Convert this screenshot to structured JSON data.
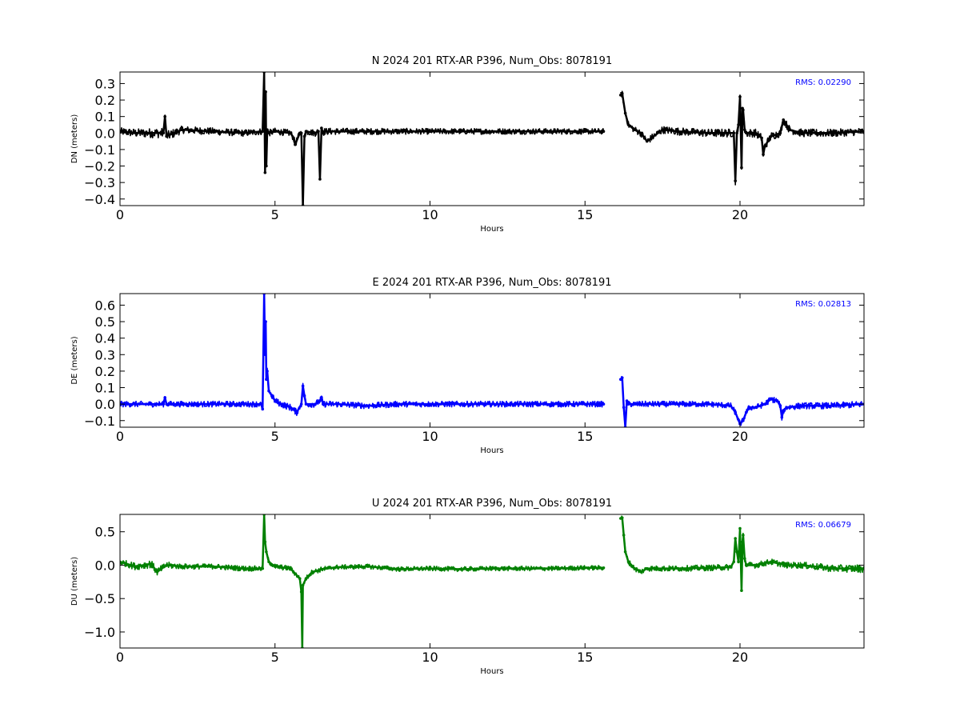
{
  "chart_data": [
    {
      "type": "line",
      "title": "N 2024 201 RTX-AR  P396, Num_Obs: 8078191",
      "xlabel": "Hours",
      "ylabel": "DN (meters)",
      "xlim": [
        0,
        24
      ],
      "ylim": [
        -0.44,
        0.37
      ],
      "xticks": [
        0,
        5,
        10,
        15,
        20
      ],
      "yticks": [
        0.3,
        0.2,
        0.1,
        0.0,
        -0.1,
        -0.2,
        -0.3,
        -0.4
      ],
      "xtick_labels": [
        "0",
        "5",
        "10",
        "15",
        "20"
      ],
      "ytick_labels": [
        "0.3",
        "0.2",
        "0.1",
        "0.0",
        "−0.1",
        "−0.2",
        "−0.3",
        "−0.4"
      ],
      "color": "#000000",
      "annotation": "RMS:  0.02290",
      "band": [
        [
          0,
          0.045
        ],
        [
          1.2,
          0.06
        ],
        [
          1.5,
          0.06
        ],
        [
          2,
          0.045
        ],
        [
          4.6,
          0.04
        ],
        [
          5.6,
          0.04
        ],
        [
          6.5,
          0.04
        ],
        [
          10,
          0.035
        ],
        [
          15.6,
          0.035
        ],
        [
          16.2,
          0.04
        ],
        [
          19.5,
          0.05
        ],
        [
          24,
          0.045
        ]
      ],
      "x": [
        0,
        0.5,
        1.0,
        1.4,
        1.45,
        1.5,
        2.0,
        3.0,
        4.0,
        4.6,
        4.65,
        4.68,
        4.7,
        4.72,
        4.75,
        4.8,
        5.0,
        5.5,
        5.6,
        5.65,
        5.8,
        5.85,
        5.9,
        5.95,
        6.0,
        6.3,
        6.4,
        6.45,
        6.5,
        6.55,
        6.6,
        7.0,
        8.0,
        9.0,
        10.0,
        11.0,
        12.0,
        13.0,
        14.0,
        15.0,
        15.6,
        null,
        16.15,
        16.2,
        16.3,
        16.4,
        16.6,
        16.8,
        17.0,
        17.5,
        18.0,
        19.0,
        19.5,
        19.8,
        19.85,
        19.9,
        19.95,
        20.0,
        20.05,
        20.08,
        20.1,
        20.15,
        20.2,
        20.5,
        20.7,
        20.75,
        20.8,
        21.0,
        21.3,
        21.4,
        21.6,
        22.0,
        23.0,
        24.0
      ],
      "y": [
        0.01,
        0.0,
        0.0,
        0.0,
        0.1,
        -0.02,
        0.02,
        0.01,
        0.0,
        0.01,
        0.37,
        -0.24,
        0.25,
        -0.2,
        0.02,
        0.0,
        0.01,
        0.0,
        -0.03,
        -0.07,
        0.0,
        0.0,
        -0.44,
        -0.02,
        0.01,
        0.0,
        0.01,
        -0.28,
        0.03,
        0.0,
        0.01,
        0.01,
        0.01,
        0.01,
        0.01,
        0.01,
        0.01,
        0.01,
        0.01,
        0.01,
        0.01,
        null,
        0.23,
        0.24,
        0.12,
        0.05,
        0.02,
        0.0,
        -0.05,
        0.02,
        0.01,
        0.0,
        0.0,
        0.0,
        -0.29,
        0.0,
        0.05,
        0.22,
        -0.21,
        0.15,
        0.14,
        0.02,
        0.0,
        0.0,
        -0.03,
        -0.13,
        -0.08,
        -0.02,
        0.0,
        0.08,
        0.02,
        0.0,
        0.0,
        0.01
      ]
    },
    {
      "type": "line",
      "title": "E 2024 201 RTX-AR  P396, Num_Obs: 8078191",
      "xlabel": "Hours",
      "ylabel": "DE (meters)",
      "xlim": [
        0,
        24
      ],
      "ylim": [
        -0.14,
        0.67
      ],
      "xticks": [
        0,
        5,
        10,
        15,
        20
      ],
      "yticks": [
        0.6,
        0.5,
        0.4,
        0.3,
        0.2,
        0.1,
        0.0,
        -0.1
      ],
      "xtick_labels": [
        "0",
        "5",
        "10",
        "15",
        "20"
      ],
      "ytick_labels": [
        "0.6",
        "0.5",
        "0.4",
        "0.3",
        "0.2",
        "0.1",
        "0.0",
        "−0.1"
      ],
      "color": "#0000ff",
      "annotation": "RMS:  0.02813",
      "band": [
        [
          0,
          0.035
        ],
        [
          4.5,
          0.035
        ],
        [
          5.0,
          0.04
        ],
        [
          10,
          0.035
        ],
        [
          15.6,
          0.035
        ],
        [
          16.2,
          0.035
        ],
        [
          19.5,
          0.035
        ],
        [
          24,
          0.04
        ]
      ],
      "x": [
        0,
        1.0,
        1.4,
        1.45,
        1.5,
        2.0,
        3.0,
        4.0,
        4.55,
        4.6,
        4.65,
        4.68,
        4.7,
        4.72,
        4.75,
        4.8,
        4.9,
        5.0,
        5.2,
        5.5,
        5.7,
        5.85,
        5.9,
        5.95,
        6.0,
        6.3,
        6.45,
        6.5,
        6.55,
        7.0,
        8.0,
        9.0,
        10.0,
        11.0,
        12.0,
        13.0,
        14.0,
        15.0,
        15.6,
        null,
        16.15,
        16.2,
        16.25,
        16.3,
        16.35,
        16.4,
        16.6,
        17.0,
        18.0,
        19.0,
        19.7,
        19.85,
        20.0,
        20.1,
        20.2,
        20.3,
        20.5,
        20.8,
        21.0,
        21.2,
        21.3,
        21.35,
        21.4,
        21.5,
        22.0,
        23.0,
        24.0
      ],
      "y": [
        0.0,
        0.0,
        0.0,
        0.04,
        0.0,
        0.0,
        0.0,
        0.0,
        0.0,
        -0.03,
        0.67,
        0.3,
        0.5,
        0.15,
        0.2,
        0.08,
        0.05,
        0.02,
        0.0,
        -0.02,
        -0.05,
        0.0,
        0.11,
        0.05,
        0.0,
        0.0,
        0.02,
        0.04,
        0.0,
        0.0,
        -0.01,
        0.0,
        0.0,
        0.0,
        0.0,
        0.0,
        0.0,
        0.0,
        0.0,
        null,
        0.15,
        0.16,
        -0.02,
        -0.14,
        0.02,
        0.0,
        0.0,
        0.0,
        0.0,
        0.0,
        -0.01,
        -0.05,
        -0.12,
        -0.1,
        -0.05,
        -0.02,
        -0.02,
        0.0,
        0.03,
        0.02,
        -0.01,
        -0.08,
        -0.04,
        -0.02,
        -0.01,
        -0.01,
        0.0
      ]
    },
    {
      "type": "line",
      "title": "U 2024 201 RTX-AR  P396, Num_Obs: 8078191",
      "xlabel": "Hours",
      "ylabel": "DU (meters)",
      "xlim": [
        0,
        24
      ],
      "ylim": [
        -1.24,
        0.76
      ],
      "xticks": [
        0,
        5,
        10,
        15,
        20
      ],
      "yticks": [
        0.5,
        0.0,
        -0.5,
        -1.0
      ],
      "xtick_labels": [
        "0",
        "5",
        "10",
        "15",
        "20"
      ],
      "ytick_labels": [
        "0.5",
        "0.0",
        "−0.5",
        "−1.0"
      ],
      "color": "#008000",
      "annotation": "RMS:  0.06679",
      "band": [
        [
          0,
          0.09
        ],
        [
          1.0,
          0.12
        ],
        [
          2.0,
          0.08
        ],
        [
          5.0,
          0.08
        ],
        [
          7.0,
          0.07
        ],
        [
          15.6,
          0.07
        ],
        [
          16.2,
          0.08
        ],
        [
          19.5,
          0.09
        ],
        [
          21.5,
          0.09
        ],
        [
          24,
          0.12
        ]
      ],
      "x": [
        0,
        0.5,
        1.0,
        1.2,
        1.5,
        2.0,
        3.0,
        4.0,
        4.55,
        4.6,
        4.65,
        4.68,
        4.72,
        4.8,
        5.0,
        5.5,
        5.8,
        5.85,
        5.88,
        5.9,
        6.0,
        6.2,
        6.4,
        6.5,
        7.0,
        8.0,
        9.0,
        10.0,
        11.0,
        12.0,
        13.0,
        14.0,
        15.0,
        15.6,
        null,
        16.15,
        16.2,
        16.25,
        16.3,
        16.4,
        16.6,
        16.8,
        17.0,
        18.0,
        19.0,
        19.7,
        19.8,
        19.85,
        19.9,
        19.95,
        20.0,
        20.05,
        20.08,
        20.1,
        20.15,
        20.2,
        20.5,
        21.0,
        21.5,
        22.0,
        23.0,
        24.0
      ],
      "y": [
        0.05,
        -0.02,
        0.02,
        -0.1,
        0.0,
        -0.02,
        -0.02,
        -0.05,
        -0.05,
        -0.05,
        0.76,
        0.35,
        0.2,
        0.05,
        -0.02,
        -0.05,
        -0.2,
        -0.4,
        -1.24,
        -0.3,
        -0.2,
        -0.1,
        -0.08,
        -0.06,
        -0.03,
        -0.02,
        -0.06,
        -0.05,
        -0.06,
        -0.05,
        -0.05,
        -0.05,
        -0.04,
        -0.04,
        null,
        0.7,
        0.71,
        0.45,
        0.2,
        0.05,
        -0.05,
        -0.1,
        -0.05,
        -0.05,
        -0.04,
        -0.03,
        0.05,
        0.4,
        0.2,
        0.05,
        0.55,
        -0.38,
        0.35,
        0.45,
        0.1,
        0.0,
        0.0,
        0.05,
        0.0,
        0.0,
        -0.05,
        -0.05
      ]
    }
  ]
}
